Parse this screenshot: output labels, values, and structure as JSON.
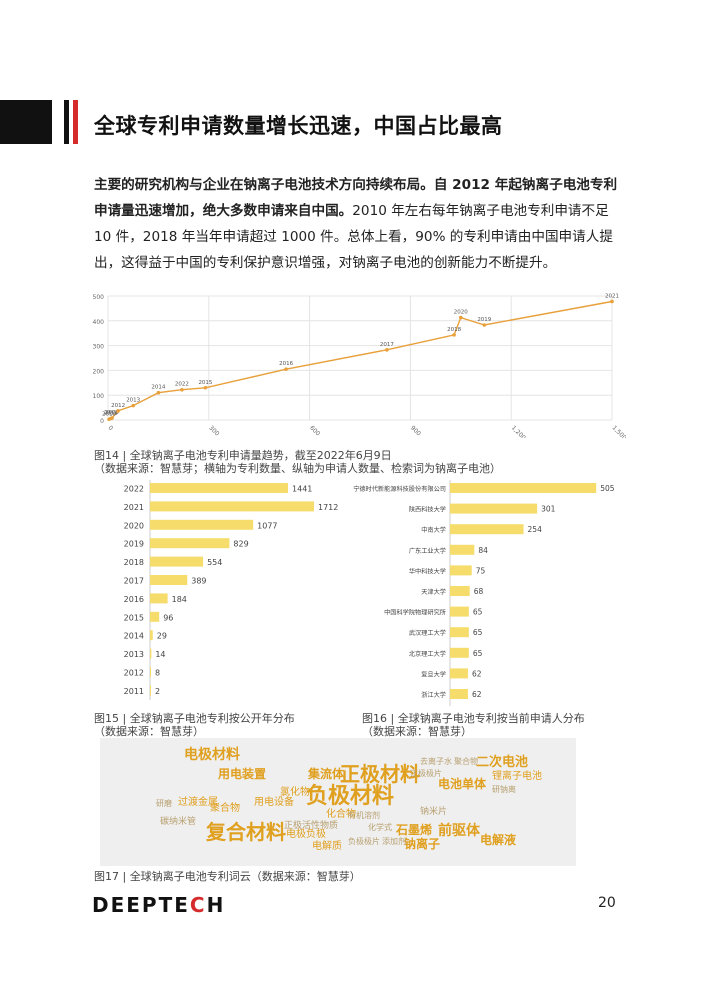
{
  "title": "全球专利申请数量增长迅速，中国占比最高",
  "paragraph": {
    "bold": "主要的研究机构与企业在钠离子电池技术方向持续布局。自 2012 年起钠离子电池专利申请量迅速增加，绝大多数申请来自中国。",
    "normal": "2010 年左右每年钠离子电池专利申请不足 10 件，2018 年当年申请超过 1000 件。总体上看，90% 的专利申请由中国申请人提出，这得益于中国的专利保护意识增强，对钠离子电池的创新能力不断提升。"
  },
  "captions": {
    "fig14_line1": "图14 | 全球钠离子电池专利申请量趋势，截至2022年6月9日",
    "fig14_line2": "（数据来源：智慧芽；横轴为专利数量、纵轴为申请人数量、检索词为钠离子电池）",
    "fig15_line1": "图15 | 全球钠离子电池专利按公开年分布",
    "fig15_line2": "（数据来源：智慧芽）",
    "fig16_line1": "图16 | 全球钠离子电池专利按当前申请人分布",
    "fig16_line2": "（数据来源：智慧芽）",
    "fig17": "图17 | 全球钠离子电池专利词云（数据来源：智慧芽）"
  },
  "chart_data": [
    {
      "type": "line",
      "xlim": [
        0,
        1500
      ],
      "ylim": [
        0,
        500
      ],
      "x_ticks": [
        "0",
        "300",
        "600",
        "900",
        "1,200",
        "1,500"
      ],
      "y_ticks": [
        "0",
        "100",
        "200",
        "300",
        "400",
        "500"
      ],
      "x_tick_values": [
        0,
        300,
        600,
        900,
        1200,
        1500
      ],
      "y_tick_values": [
        0,
        100,
        200,
        300,
        400,
        500
      ],
      "grid": true,
      "points": [
        {
          "label": "2010",
          "x": 3,
          "y": 3
        },
        {
          "label": "2011",
          "x": 8,
          "y": 6
        },
        {
          "label": "2009",
          "x": 12,
          "y": 8
        },
        {
          "label": "2012",
          "x": 30,
          "y": 37
        },
        {
          "label": "2013",
          "x": 75,
          "y": 58
        },
        {
          "label": "2014",
          "x": 150,
          "y": 110
        },
        {
          "label": "2022",
          "x": 220,
          "y": 122
        },
        {
          "label": "2015",
          "x": 290,
          "y": 130
        },
        {
          "label": "2016",
          "x": 530,
          "y": 205
        },
        {
          "label": "2017",
          "x": 830,
          "y": 283
        },
        {
          "label": "2018",
          "x": 1030,
          "y": 343
        },
        {
          "label": "2020",
          "x": 1050,
          "y": 413
        },
        {
          "label": "2019",
          "x": 1120,
          "y": 383
        },
        {
          "label": "2021",
          "x": 1500,
          "y": 478
        }
      ],
      "color": "#e8a03a"
    },
    {
      "type": "bar",
      "orientation": "horizontal",
      "categories": [
        "2022",
        "2021",
        "2020",
        "2019",
        "2018",
        "2017",
        "2016",
        "2015",
        "2014",
        "2013",
        "2012",
        "2011"
      ],
      "values": [
        1441,
        1712,
        1077,
        829,
        554,
        389,
        184,
        96,
        29,
        14,
        8,
        2
      ],
      "xlim": [
        0,
        1900
      ],
      "color": "#f5dc6b"
    },
    {
      "type": "bar",
      "orientation": "horizontal",
      "categories": [
        "宁德时代新能源科技股份有限公司",
        "陕西科技大学",
        "中南大学",
        "广东工业大学",
        "华中科技大学",
        "天津大学",
        "中国科学院物理研究所",
        "武汉理工大学",
        "北京理工大学",
        "复旦大学",
        "浙江大学"
      ],
      "values": [
        505,
        301,
        254,
        84,
        75,
        68,
        65,
        65,
        65,
        62,
        62
      ],
      "xlim": [
        0,
        525
      ],
      "color": "#f5dc6b"
    }
  ],
  "wordcloud": [
    {
      "text": "电极材料",
      "x": 84,
      "y": 10,
      "size": 14,
      "color": "#e0a020"
    },
    {
      "text": "用电装置",
      "x": 118,
      "y": 30,
      "size": 12,
      "color": "#e0a020"
    },
    {
      "text": "集流体",
      "x": 208,
      "y": 30,
      "size": 12,
      "color": "#e0a020"
    },
    {
      "text": "正极材料",
      "x": 240,
      "y": 26,
      "size": 20,
      "color": "#e0a020"
    },
    {
      "text": "二次电池",
      "x": 376,
      "y": 18,
      "size": 13,
      "color": "#e0a020"
    },
    {
      "text": "锂离子电池",
      "x": 392,
      "y": 34,
      "size": 10,
      "color": "#e0a020"
    },
    {
      "text": "负极材料",
      "x": 206,
      "y": 48,
      "size": 22,
      "color": "#e0a020"
    },
    {
      "text": "电池单体",
      "x": 338,
      "y": 40,
      "size": 12,
      "color": "#e0a020"
    },
    {
      "text": "过渡金属",
      "x": 78,
      "y": 60,
      "size": 10,
      "color": "#e0a020"
    },
    {
      "text": "用电设备",
      "x": 154,
      "y": 60,
      "size": 10,
      "color": "#e0a020"
    },
    {
      "text": "氯化物",
      "x": 180,
      "y": 50,
      "size": 10,
      "color": "#e0a020"
    },
    {
      "text": "聚合物",
      "x": 110,
      "y": 66,
      "size": 10,
      "color": "#e0a020"
    },
    {
      "text": "化合物",
      "x": 226,
      "y": 72,
      "size": 10,
      "color": "#e0a020"
    },
    {
      "text": "复合材料",
      "x": 106,
      "y": 84,
      "size": 20,
      "color": "#e0a020"
    },
    {
      "text": "电极负极",
      "x": 186,
      "y": 92,
      "size": 10,
      "color": "#e0a020"
    },
    {
      "text": "电解质",
      "x": 212,
      "y": 104,
      "size": 10,
      "color": "#e0a020"
    },
    {
      "text": "石墨烯",
      "x": 296,
      "y": 86,
      "size": 12,
      "color": "#e0a020"
    },
    {
      "text": "前驱体",
      "x": 338,
      "y": 86,
      "size": 14,
      "color": "#e0a020"
    },
    {
      "text": "钠离子",
      "x": 304,
      "y": 100,
      "size": 12,
      "color": "#e0a020"
    },
    {
      "text": "电解液",
      "x": 380,
      "y": 96,
      "size": 12,
      "color": "#e0a020"
    },
    {
      "text": "碳纳米管",
      "x": 60,
      "y": 80,
      "size": 9,
      "color": "#b8a070"
    },
    {
      "text": "钠米片",
      "x": 320,
      "y": 70,
      "size": 9,
      "color": "#b8a070"
    },
    {
      "text": "正极活性物质",
      "x": 184,
      "y": 84,
      "size": 9,
      "color": "#b8a070"
    },
    {
      "text": "正极极片",
      "x": 310,
      "y": 32,
      "size": 8,
      "color": "#b8a070"
    },
    {
      "text": "去离子水",
      "x": 320,
      "y": 20,
      "size": 8,
      "color": "#b8a070"
    },
    {
      "text": "化学式",
      "x": 268,
      "y": 86,
      "size": 8,
      "color": "#b8a070"
    },
    {
      "text": "添加剂",
      "x": 282,
      "y": 100,
      "size": 8,
      "color": "#b8a070"
    },
    {
      "text": "负极极片",
      "x": 248,
      "y": 100,
      "size": 8,
      "color": "#b8a070"
    },
    {
      "text": "有机溶剂",
      "x": 248,
      "y": 74,
      "size": 8,
      "color": "#b8a070"
    },
    {
      "text": "聚合物",
      "x": 354,
      "y": 20,
      "size": 8,
      "color": "#b8a070"
    },
    {
      "text": "研磨",
      "x": 56,
      "y": 62,
      "size": 8,
      "color": "#b8a070"
    },
    {
      "text": "研钠离",
      "x": 392,
      "y": 48,
      "size": 8,
      "color": "#b8a070"
    }
  ],
  "logo": {
    "part1": "DEEPTE",
    "part2": "C",
    "part3": "H"
  },
  "page_number": "20"
}
